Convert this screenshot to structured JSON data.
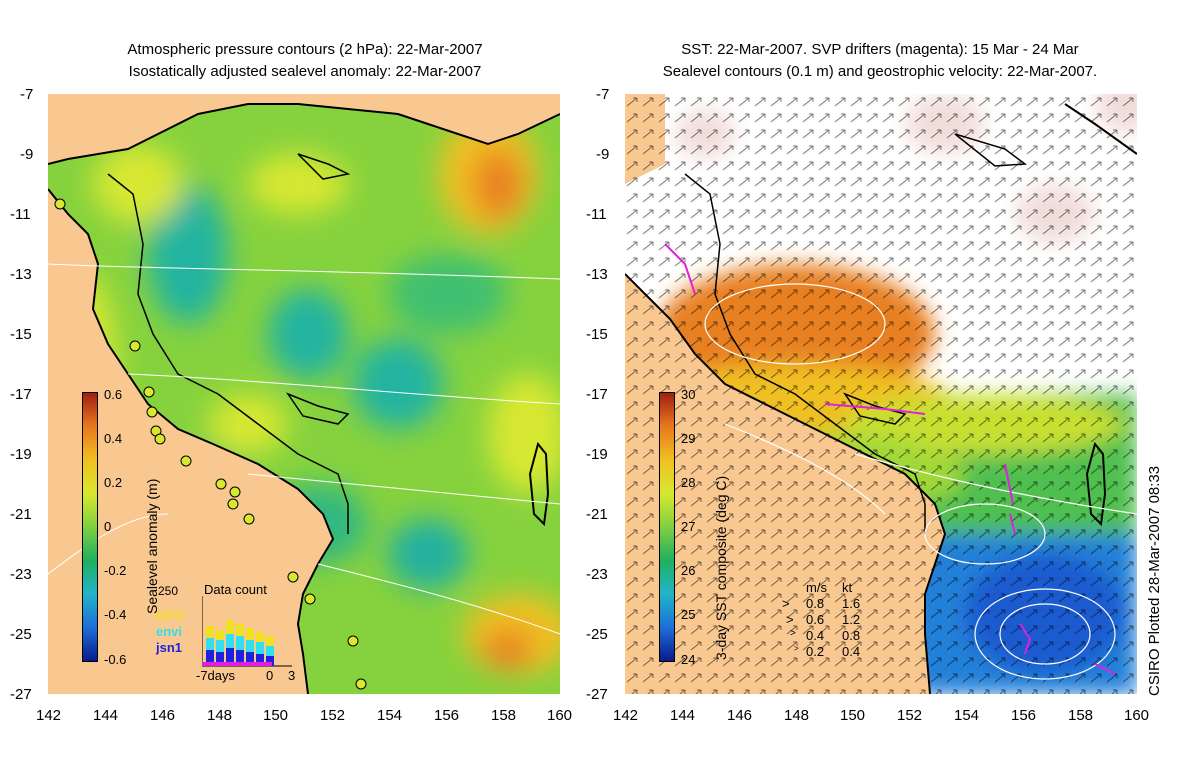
{
  "left_panel": {
    "title_line1": "Atmospheric pressure contours (2 hPa): 22-Mar-2007",
    "title_line2": "Isostatically adjusted sealevel anomaly: 22-Mar-2007",
    "colorbar_label": "Sealevel anomaly (m)",
    "colorbar_ticks": [
      "0.6",
      "0.4",
      "0.2",
      "0",
      "-0.2",
      "-0.4",
      "-0.6"
    ],
    "inset": {
      "title": "Data count",
      "ymax": "250",
      "xlabels": [
        "-7days",
        "0",
        "3"
      ],
      "satellites": [
        {
          "name": "GFO",
          "color": "#f0e020"
        },
        {
          "name": "envi",
          "color": "#30e0f0"
        },
        {
          "name": "jsn1",
          "color": "#2020e0"
        }
      ]
    }
  },
  "right_panel": {
    "title_line1": "SST: 22-Mar-2007. SVP drifters (magenta): 15 Mar - 24 Mar",
    "title_line2": "Sealevel contours (0.1 m) and geostrophic velocity: 22-Mar-2007.",
    "colorbar_label": "3-day SST composite (deg C)",
    "colorbar_ticks": [
      "30",
      "29",
      "28",
      "27",
      "26",
      "25",
      "24"
    ],
    "velocity_legend": {
      "header_ms": "m/s",
      "header_kt": "kt",
      "rows": [
        {
          "ms": "0.8",
          "kt": "1.6"
        },
        {
          "ms": "0.6",
          "kt": "1.2"
        },
        {
          "ms": "0.4",
          "kt": "0.8"
        },
        {
          "ms": "0.2",
          "kt": "0.4"
        }
      ]
    }
  },
  "axes": {
    "lat_ticks": [
      "-7",
      "-9",
      "-11",
      "-13",
      "-15",
      "-17",
      "-19",
      "-21",
      "-23",
      "-25",
      "-27"
    ],
    "lon_ticks": [
      "142",
      "144",
      "146",
      "148",
      "150",
      "152",
      "154",
      "156",
      "158",
      "160"
    ]
  },
  "credit": "CSIRO Plotted 28-Mar-2007 08:33",
  "colors": {
    "land": "#f8c890",
    "sla_scale": [
      "#0a1a8c",
      "#1e6ed8",
      "#22b4c8",
      "#20b060",
      "#80d040",
      "#d8e830",
      "#f0c020",
      "#e87820",
      "#b83010"
    ],
    "sst_scale": [
      "#0a1a8c",
      "#1e6ed8",
      "#22b4c8",
      "#20b060",
      "#80d040",
      "#d8e830",
      "#f0c020",
      "#e87820",
      "#a02010"
    ],
    "drifter": "#e020e0"
  }
}
